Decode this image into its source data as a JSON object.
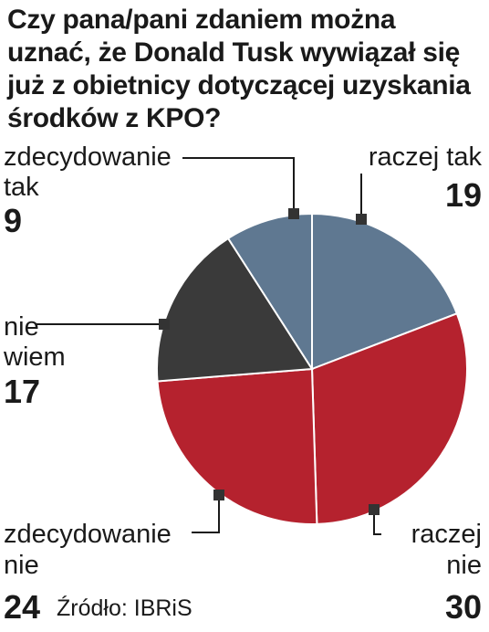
{
  "title": "Czy pana/pani zdaniem można uznać, że Donald Tusk wywiązał się już z obietnicy dotyczącej uzyskania środków z KPO?",
  "source": "Źródło: IBRiS",
  "colors": {
    "raczej_tak": "#5f7891",
    "raczej_nie": "#b5222e",
    "zdecydowanie_nie": "#b5222e",
    "nie_wiem": "#3a3a3a",
    "zdecydowanie_tak": "#5f7891"
  },
  "chart_data": {
    "type": "pie",
    "title": "Czy pana/pani zdaniem można uznać, że Donald Tusk wywiązał się już z obietnicy dotyczącej uzyskania środków z KPO?",
    "unit": "",
    "slices": [
      {
        "key": "raczej_tak",
        "label": "raczej tak",
        "value": 19,
        "color": "#5f7891"
      },
      {
        "key": "raczej_nie",
        "label": "raczej nie",
        "value": 30,
        "color": "#b5222e"
      },
      {
        "key": "zdecydowanie_nie",
        "label": "zdecydowanie nie",
        "value": 24,
        "color": "#b5222e"
      },
      {
        "key": "nie_wiem",
        "label": "nie wiem",
        "value": 17,
        "color": "#3a3a3a"
      },
      {
        "key": "zdecydowanie_tak",
        "label": "zdecydowanie tak",
        "value": 9,
        "color": "#5f7891"
      }
    ]
  },
  "labels": {
    "zdecydowanie_tak": {
      "line1": "zdecydowanie",
      "line2": "tak",
      "value": "9"
    },
    "raczej_tak": {
      "line1": "raczej tak",
      "value": "19"
    },
    "nie_wiem": {
      "line1": "nie",
      "line2": "wiem",
      "value": "17"
    },
    "zdecydowanie_nie": {
      "line1": "zdecydowanie",
      "line2": "nie",
      "value": "24"
    },
    "raczej_nie": {
      "line1": "raczej",
      "line2": "nie",
      "value": "30"
    }
  }
}
